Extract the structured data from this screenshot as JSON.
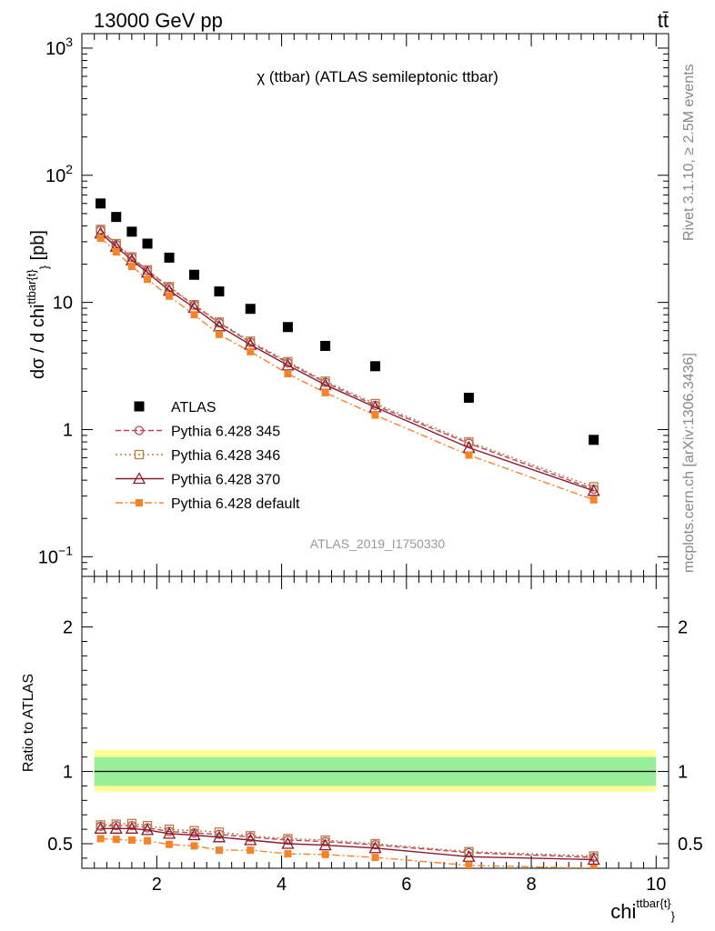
{
  "header": {
    "left": "13000 GeV pp",
    "right": "tt̄"
  },
  "side_labels": {
    "rivet": "Rivet 3.1.10, ≥ 2.5M events",
    "mcplots": "mcplots.cern.ch [arXiv:1306.3436]"
  },
  "chart_data": [
    {
      "type": "scatter",
      "panel": "main",
      "title": "χ (ttbar) (ATLAS semileptonic ttbar)",
      "ylabel_main": "dσ / d chi",
      "ylabel_sup": "ttbar{t}",
      "ylabel_sub": "}",
      "ylabel_tail": " [pb]",
      "yscale": "log",
      "ylim": [
        0.07,
        1300
      ],
      "xlim": [
        0.8,
        10.2
      ],
      "yticks": [
        {
          "value": 1000,
          "base": "10",
          "exp": "3"
        },
        {
          "value": 100,
          "base": "10",
          "exp": "2"
        },
        {
          "value": 10,
          "base": "10",
          "exp": ""
        },
        {
          "value": 1,
          "base": "1",
          "exp": ""
        },
        {
          "value": 0.1,
          "base": "10",
          "exp": "−1"
        }
      ],
      "watermark": "ATLAS_2019_I1750330",
      "legend_position": "lower-left",
      "x": [
        1.1,
        1.35,
        1.6,
        1.85,
        2.2,
        2.6,
        3.0,
        3.5,
        4.1,
        4.7,
        5.5,
        7.0,
        9.0
      ],
      "series": [
        {
          "name": "ATLAS",
          "color": "#000000",
          "marker": "filled-square",
          "line": "none",
          "values": [
            60,
            47,
            36,
            29,
            22.5,
            16.5,
            12.2,
            8.9,
            6.4,
            4.55,
            3.15,
            1.78,
            0.83
          ]
        },
        {
          "name": "Pythia 6.428 345",
          "color": "#c0405a",
          "marker": "open-circle",
          "line": "dashed",
          "values": [
            37,
            28.5,
            22.5,
            17.8,
            13.1,
            9.5,
            6.9,
            4.85,
            3.35,
            2.35,
            1.55,
            0.78,
            0.34
          ]
        },
        {
          "name": "Pythia 6.428 346",
          "color": "#b08040",
          "marker": "open-square",
          "line": "dotted",
          "values": [
            37.5,
            29,
            22.8,
            18.0,
            13.3,
            9.6,
            7.0,
            4.95,
            3.42,
            2.4,
            1.6,
            0.8,
            0.355
          ]
        },
        {
          "name": "Pythia 6.428 370",
          "color": "#8b1a2b",
          "marker": "open-triangle",
          "line": "solid",
          "values": [
            35,
            27.5,
            21.5,
            17.2,
            12.4,
            9.1,
            6.5,
            4.65,
            3.2,
            2.25,
            1.5,
            0.72,
            0.33
          ]
        },
        {
          "name": "Pythia 6.428 default",
          "color": "#f5832a",
          "marker": "filled-square-small",
          "line": "dashdot",
          "values": [
            32,
            25,
            19.2,
            15.2,
            11.2,
            8.0,
            5.6,
            4.1,
            2.75,
            1.95,
            1.3,
            0.63,
            0.28
          ]
        }
      ]
    },
    {
      "type": "line",
      "panel": "ratio",
      "ylabel": "Ratio to ATLAS",
      "ylim": [
        0.33,
        2.35
      ],
      "xlim": [
        0.8,
        10.2
      ],
      "xlabel_main": "chi",
      "xlabel_sup": "ttbar{t}",
      "xlabel_sub": "}",
      "xticks": [
        "2",
        "4",
        "6",
        "8",
        "10"
      ],
      "yticks": [
        "0.5",
        "1",
        "2"
      ],
      "bands": {
        "inner_color": "#99ee99",
        "outer_color": "#ffff99",
        "inner": [
          0.9,
          1.1
        ],
        "outer": [
          0.86,
          1.15
        ]
      },
      "x": [
        1.1,
        1.35,
        1.6,
        1.85,
        2.2,
        2.6,
        3.0,
        3.5,
        4.1,
        4.7,
        5.5,
        7.0,
        9.0
      ],
      "series": [
        {
          "name": "Pythia 6.428 345",
          "color": "#c0405a",
          "line": "dashed",
          "values": [
            0.62,
            0.625,
            0.625,
            0.61,
            0.585,
            0.575,
            0.565,
            0.545,
            0.525,
            0.515,
            0.492,
            0.438,
            0.405
          ]
        },
        {
          "name": "Pythia 6.428 346",
          "color": "#b08040",
          "line": "dotted",
          "values": [
            0.63,
            0.635,
            0.64,
            0.625,
            0.6,
            0.59,
            0.58,
            0.555,
            0.535,
            0.525,
            0.5,
            0.445,
            0.415
          ]
        },
        {
          "name": "Pythia 6.428 370",
          "color": "#8b1a2b",
          "line": "solid",
          "values": [
            0.605,
            0.605,
            0.605,
            0.595,
            0.57,
            0.56,
            0.545,
            0.525,
            0.5,
            0.49,
            0.47,
            0.41,
            0.39
          ]
        },
        {
          "name": "Pythia 6.428 default",
          "color": "#f5832a",
          "line": "dashdot",
          "values": [
            0.535,
            0.53,
            0.525,
            0.52,
            0.495,
            0.485,
            0.455,
            0.455,
            0.43,
            0.425,
            0.405,
            0.35,
            0.33
          ]
        }
      ]
    }
  ]
}
